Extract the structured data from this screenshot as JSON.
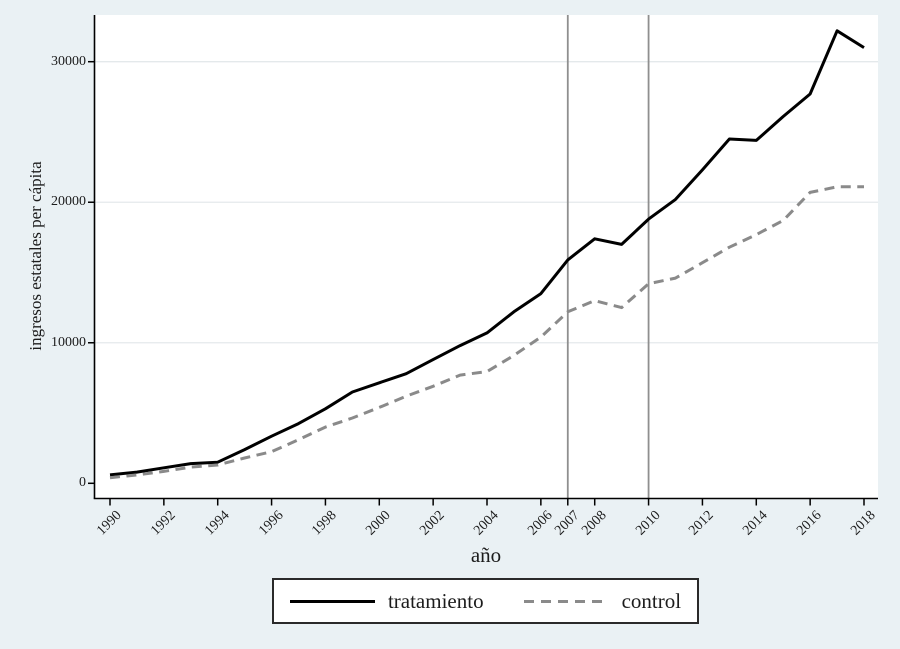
{
  "figure": {
    "background_color": "#eaf1f4",
    "plot_background_color": "#ffffff",
    "gridline_color": "#e4e9eb",
    "reference_line_color": "#8f8f8f",
    "axis_color": "#000000",
    "text_color": "#1c1c1c"
  },
  "chart_data": {
    "type": "line",
    "title": "",
    "xlabel": "año",
    "ylabel": "ingresos estatales per cápita",
    "grid": true,
    "legend_position": "bottom-center",
    "x_range": [
      1990,
      2018
    ],
    "ylim": [
      0,
      33500
    ],
    "x_ticks": [
      "1990",
      "1992",
      "1994",
      "1996",
      "1998",
      "2000",
      "2002",
      "2004",
      "2006",
      "2007",
      "2008",
      "2010",
      "2012",
      "2014",
      "2016",
      "2018"
    ],
    "y_ticks": [
      "0",
      "10000",
      "20000",
      "30000"
    ],
    "reference_lines_x": [
      2007,
      2010
    ],
    "x": [
      1990,
      1991,
      1992,
      1993,
      1994,
      1995,
      1996,
      1997,
      1998,
      1999,
      2000,
      2001,
      2002,
      2003,
      2004,
      2005,
      2006,
      2007,
      2008,
      2009,
      2010,
      2011,
      2012,
      2013,
      2014,
      2015,
      2016,
      2017,
      2018
    ],
    "series": [
      {
        "name": "tratamiento",
        "line_style": "solid",
        "color": "#000000",
        "values": [
          600,
          800,
          1100,
          1400,
          1500,
          2400,
          3350,
          4250,
          5300,
          6500,
          7150,
          7800,
          8800,
          9800,
          10700,
          12200,
          13500,
          15900,
          17400,
          17000,
          18800,
          20200,
          22300,
          24500,
          24400,
          26100,
          27700,
          32200,
          31000
        ]
      },
      {
        "name": "control",
        "line_style": "dashed",
        "color": "#8a8a8a",
        "values": [
          400,
          600,
          850,
          1150,
          1300,
          1800,
          2250,
          3100,
          4000,
          4650,
          5400,
          6200,
          6900,
          7700,
          7950,
          9100,
          10400,
          12200,
          13000,
          12500,
          14200,
          14600,
          15700,
          16800,
          17700,
          18700,
          20700,
          21100,
          21100
        ]
      }
    ]
  }
}
